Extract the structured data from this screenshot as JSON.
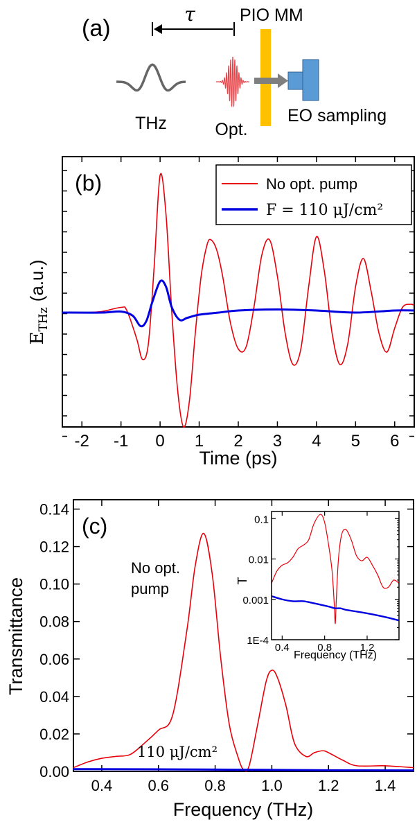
{
  "panel_a": {
    "label": "(a)",
    "tau": "τ",
    "sample": "PIO MM",
    "thz": "THz",
    "opt": "Opt.",
    "eo": "EO sampling",
    "colors": {
      "thz_pulse": "#666666",
      "opt_pulse": "#e8454a",
      "sample": "#ffc000",
      "arrow": "#7f7f7f",
      "detector": "#5b9bd5"
    }
  },
  "chart_data": [
    {
      "type": "line",
      "panel": "(b)",
      "xlabel": "Time (ps)",
      "ylabel_main": "E",
      "ylabel_sub": "THz",
      "ylabel_unit": "(a.u.)",
      "xlim": [
        -2.5,
        6.5
      ],
      "ylim": [
        -1.1,
        1.5
      ],
      "x_ticks": [
        -2,
        -1,
        0,
        1,
        2,
        3,
        4,
        5,
        6
      ],
      "y_ticks_unlabeled": true,
      "legend_position": "top-right",
      "series": [
        {
          "name": "No opt. pump",
          "color": "#e8000b",
          "x": [
            -2.5,
            -2.0,
            -1.5,
            -1.0,
            -0.85,
            -0.6,
            -0.45,
            -0.3,
            -0.15,
            0.0,
            0.15,
            0.3,
            0.45,
            0.6,
            0.75,
            0.9,
            1.05,
            1.2,
            1.3,
            1.45,
            1.6,
            1.8,
            2.0,
            2.2,
            2.4,
            2.6,
            2.8,
            3.0,
            3.2,
            3.4,
            3.6,
            3.8,
            4.0,
            4.2,
            4.4,
            4.6,
            4.8,
            5.0,
            5.2,
            5.4,
            5.6,
            5.8,
            6.0,
            6.2,
            6.4,
            6.5
          ],
          "y": [
            0.0,
            0.0,
            0.01,
            0.05,
            0.02,
            -0.25,
            -0.45,
            -0.3,
            0.45,
            1.32,
            0.95,
            0.0,
            -0.75,
            -1.1,
            -0.85,
            -0.2,
            0.35,
            0.65,
            0.7,
            0.6,
            0.35,
            -0.1,
            -0.35,
            -0.33,
            0.05,
            0.55,
            0.7,
            0.35,
            -0.2,
            -0.5,
            -0.35,
            0.25,
            0.73,
            0.4,
            -0.2,
            -0.5,
            -0.3,
            0.25,
            0.52,
            0.2,
            -0.2,
            -0.38,
            -0.15,
            0.05,
            0.08,
            0.07
          ]
        },
        {
          "name": "F = 110 μJ/cm²",
          "color": "#0000e0",
          "x": [
            -2.5,
            -1.5,
            -1.0,
            -0.7,
            -0.5,
            -0.35,
            -0.2,
            0.0,
            0.15,
            0.3,
            0.5,
            0.7,
            1.0,
            1.5,
            2.0,
            3.0,
            4.0,
            5.0,
            6.0,
            6.5
          ],
          "y": [
            0.0,
            0.0,
            0.01,
            -0.03,
            -0.13,
            -0.08,
            0.1,
            0.3,
            0.25,
            0.05,
            -0.07,
            -0.05,
            -0.02,
            0.0,
            0.02,
            0.03,
            0.02,
            0.0,
            0.02,
            0.02
          ]
        }
      ]
    },
    {
      "type": "line",
      "panel": "(c)",
      "xlabel": "Frequency (THz)",
      "ylabel": "Transmittance",
      "xlim": [
        0.3,
        1.5
      ],
      "ylim": [
        0,
        0.145
      ],
      "x_ticks": [
        0.4,
        0.6,
        0.8,
        1.0,
        1.2,
        1.4
      ],
      "x_tick_labels": [
        "0.4",
        "0.6",
        "0.8",
        "1.0",
        "1.2",
        "1.4"
      ],
      "y_ticks": [
        0.0,
        0.02,
        0.04,
        0.06,
        0.08,
        0.1,
        0.12,
        0.14
      ],
      "y_tick_labels": [
        "0.00",
        "0.02",
        "0.04",
        "0.06",
        "0.08",
        "0.10",
        "0.12",
        "0.14"
      ],
      "annotation_no_pump_1": "No opt.",
      "annotation_no_pump_2": "pump",
      "annotation_pump": "110 μJ/cm²",
      "series": [
        {
          "name": "No opt. pump",
          "color": "#e8000b",
          "x": [
            0.3,
            0.35,
            0.4,
            0.45,
            0.5,
            0.55,
            0.6,
            0.65,
            0.7,
            0.73,
            0.76,
            0.79,
            0.82,
            0.85,
            0.88,
            0.9,
            0.92,
            0.95,
            0.98,
            1.0,
            1.02,
            1.05,
            1.08,
            1.12,
            1.15,
            1.18,
            1.2,
            1.25,
            1.3,
            1.4,
            1.5
          ],
          "y": [
            0.002,
            0.005,
            0.007,
            0.008,
            0.009,
            0.015,
            0.022,
            0.03,
            0.075,
            0.11,
            0.127,
            0.105,
            0.06,
            0.025,
            0.008,
            0.001,
            0.003,
            0.025,
            0.048,
            0.054,
            0.05,
            0.035,
            0.015,
            0.008,
            0.01,
            0.011,
            0.01,
            0.006,
            0.003,
            0.003,
            0.002
          ]
        },
        {
          "name": "110 μJ/cm²",
          "color": "#0000e0",
          "x": [
            0.3,
            0.6,
            0.9,
            1.2,
            1.5
          ],
          "y": [
            0.0012,
            0.0011,
            0.0009,
            0.0006,
            0.0005
          ]
        }
      ],
      "inset": {
        "type": "line",
        "xlabel": "Frequency (THz)",
        "ylabel": "T",
        "scale_y": "log",
        "xlim": [
          0.3,
          1.5
        ],
        "ylim": [
          0.0001,
          0.15
        ],
        "x_ticks": [
          0.4,
          0.8,
          1.2
        ],
        "x_tick_labels": [
          "0.4",
          "0.8",
          "1.2"
        ],
        "y_ticks": [
          0.0001,
          0.001,
          0.01,
          0.1
        ],
        "y_tick_labels": [
          "1E-4",
          "0.001",
          "0.01",
          "0.1"
        ],
        "series": [
          {
            "name": "No opt. pump",
            "color": "#e8000b",
            "x": [
              0.3,
              0.35,
              0.4,
              0.45,
              0.5,
              0.55,
              0.6,
              0.65,
              0.7,
              0.76,
              0.8,
              0.84,
              0.87,
              0.89,
              0.9,
              0.91,
              0.93,
              0.96,
              1.0,
              1.05,
              1.1,
              1.15,
              1.2,
              1.25,
              1.3,
              1.35,
              1.4,
              1.45,
              1.5
            ],
            "y": [
              0.0025,
              0.005,
              0.007,
              0.008,
              0.011,
              0.018,
              0.022,
              0.03,
              0.075,
              0.127,
              0.08,
              0.02,
              0.005,
              0.0008,
              0.00025,
              0.001,
              0.01,
              0.04,
              0.054,
              0.03,
              0.012,
              0.009,
              0.011,
              0.007,
              0.004,
              0.002,
              0.002,
              0.003,
              0.0025
            ]
          },
          {
            "name": "110 μJ/cm²",
            "color": "#0000e0",
            "x": [
              0.3,
              0.4,
              0.5,
              0.6,
              0.7,
              0.8,
              0.85,
              0.9,
              0.95,
              1.0,
              1.1,
              1.2,
              1.3,
              1.4,
              1.5
            ],
            "y": [
              0.0012,
              0.001,
              0.0009,
              0.0009,
              0.0008,
              0.0007,
              0.00065,
              0.0006,
              0.0006,
              0.00055,
              0.0005,
              0.00045,
              0.0004,
              0.00035,
              0.0003
            ]
          }
        ]
      }
    }
  ]
}
